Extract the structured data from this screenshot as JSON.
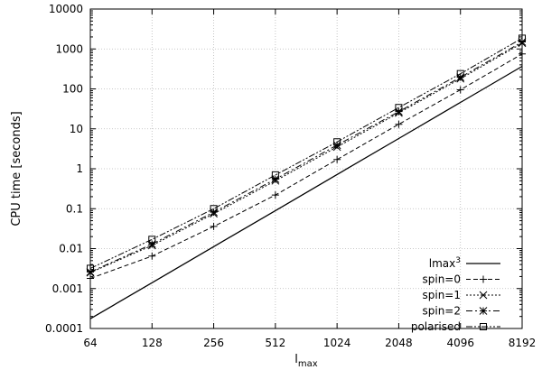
{
  "chart_data": {
    "type": "line",
    "title": "",
    "xlabel": "l",
    "xlabel_sub": "max",
    "ylabel": "CPU time [seconds]",
    "x_scale": "log2",
    "y_scale": "log10",
    "xlim": [
      64,
      8192
    ],
    "ylim": [
      0.0001,
      10000
    ],
    "x": [
      64,
      128,
      256,
      512,
      1024,
      2048,
      4096,
      8192
    ],
    "x_tick_labels": [
      "64",
      "128",
      "256",
      "512",
      "1024",
      "2048",
      "4096",
      "8192"
    ],
    "y_ticks": [
      0.0001,
      0.001,
      0.01,
      0.1,
      1,
      10,
      100,
      1000,
      10000
    ],
    "y_tick_labels": [
      "0.0001",
      "0.001",
      "0.01",
      "0.1",
      "1",
      "10",
      "100",
      "1000",
      "10000"
    ],
    "grid": true,
    "legend_position": "bottom-right",
    "series": [
      {
        "name": "lmax",
        "name_sup": "3",
        "style": "solid",
        "marker": "none",
        "values": [
          0.000175,
          0.0014,
          0.0112,
          0.0896,
          0.717,
          5.73,
          45.9,
          367
        ]
      },
      {
        "name": "spin=0",
        "style": "dashed",
        "marker": "plus",
        "values": [
          0.0018,
          0.0065,
          0.036,
          0.22,
          1.7,
          13,
          95,
          750
        ]
      },
      {
        "name": "spin=1",
        "style": "dotted",
        "marker": "cross",
        "values": [
          0.0025,
          0.012,
          0.075,
          0.5,
          3.5,
          25,
          180,
          1400
        ]
      },
      {
        "name": "spin=2",
        "style": "dashdot",
        "marker": "star",
        "values": [
          0.0026,
          0.013,
          0.082,
          0.55,
          3.9,
          27,
          195,
          1500
        ]
      },
      {
        "name": "polarised",
        "style": "dashdotdot",
        "marker": "square",
        "values": [
          0.0032,
          0.017,
          0.1,
          0.7,
          4.7,
          34,
          240,
          1850
        ]
      }
    ]
  }
}
